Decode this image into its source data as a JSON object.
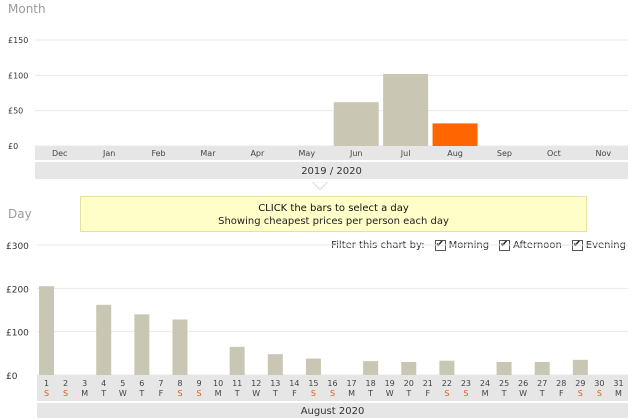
{
  "month_section": {
    "title": "Month",
    "footer": "2019 / 2020"
  },
  "day_section": {
    "title": "Day",
    "footer": "August 2020"
  },
  "callout": {
    "line1": "CLICK the bars to select a day",
    "line2": "Showing cheapest prices per person each day"
  },
  "filter": {
    "label": "Filter this chart by:",
    "options": [
      {
        "label": "Morning",
        "checked": true
      },
      {
        "label": "Afternoon",
        "checked": true
      },
      {
        "label": "Evening",
        "checked": true
      }
    ]
  },
  "colors": {
    "bar": "#cac6b4",
    "selected": "#ff6600",
    "weekend": "#e8590c",
    "axis_band": "#e6e6e6",
    "grid": "#e8e8e8"
  },
  "chart_data": [
    {
      "type": "bar",
      "title": "Month",
      "xlabel": "2019 / 2020",
      "ylim": [
        0,
        150
      ],
      "yticks": [
        "£0",
        "£50",
        "£100",
        "£150"
      ],
      "categories": [
        "Dec",
        "Jan",
        "Feb",
        "Mar",
        "Apr",
        "May",
        "Jun",
        "Jul",
        "Aug",
        "Sep",
        "Oct",
        "Nov"
      ],
      "values": [
        null,
        null,
        null,
        null,
        null,
        null,
        62,
        102,
        32,
        null,
        null,
        null
      ],
      "selected": "Aug"
    },
    {
      "type": "bar",
      "title": "Day",
      "xlabel": "August 2020",
      "ylim": [
        0,
        300
      ],
      "yticks": [
        "£0",
        "£100",
        "£200",
        "£300"
      ],
      "days": [
        "1",
        "2",
        "3",
        "4",
        "5",
        "6",
        "7",
        "8",
        "9",
        "10",
        "11",
        "12",
        "13",
        "14",
        "15",
        "16",
        "17",
        "18",
        "19",
        "20",
        "21",
        "22",
        "23",
        "24",
        "25",
        "26",
        "27",
        "28",
        "29",
        "30",
        "31"
      ],
      "weekdays": [
        "S",
        "S",
        "M",
        "T",
        "W",
        "T",
        "F",
        "S",
        "S",
        "M",
        "T",
        "W",
        "T",
        "F",
        "S",
        "S",
        "M",
        "T",
        "W",
        "T",
        "F",
        "S",
        "S",
        "M",
        "T",
        "W",
        "T",
        "F",
        "S",
        "S",
        "M"
      ],
      "values": [
        205,
        null,
        null,
        162,
        null,
        140,
        null,
        128,
        null,
        null,
        65,
        null,
        48,
        null,
        38,
        null,
        null,
        32,
        null,
        30,
        null,
        33,
        null,
        null,
        30,
        null,
        30,
        null,
        35,
        null,
        null
      ]
    }
  ]
}
